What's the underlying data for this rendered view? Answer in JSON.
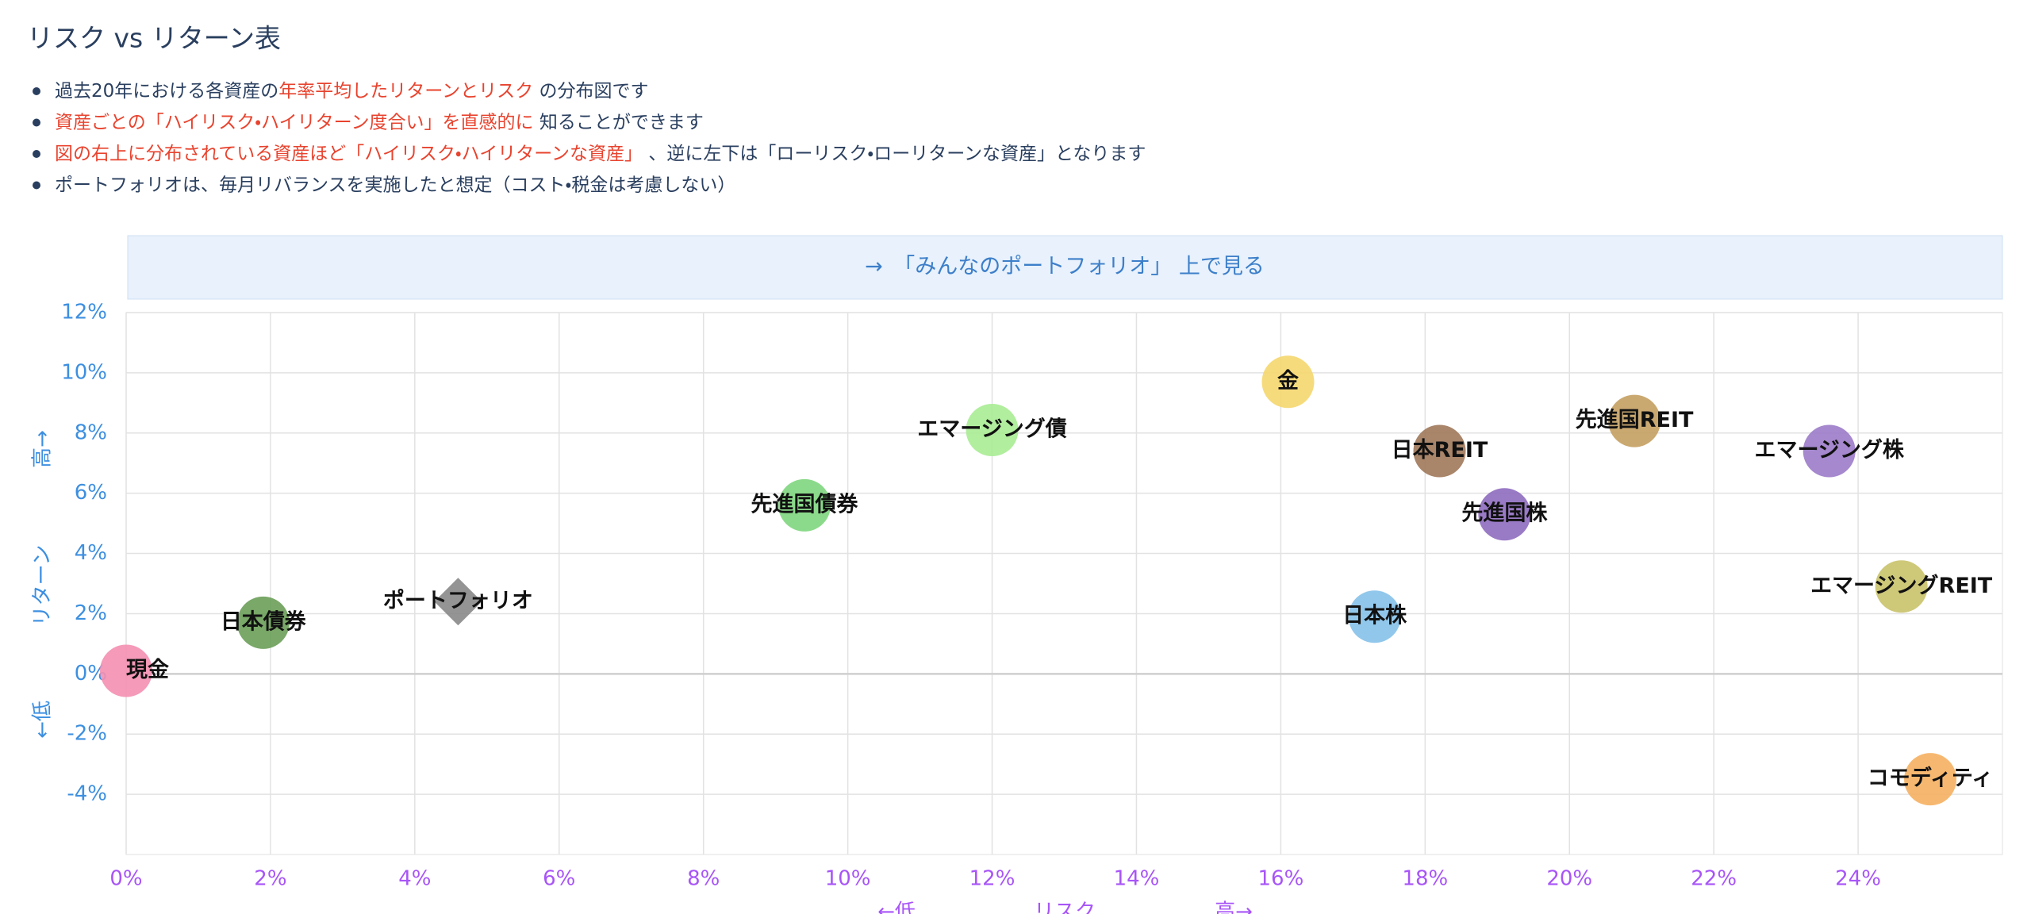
{
  "header": {
    "title": "リスク vs リターン表"
  },
  "bullets": [
    [
      "過去20年における各資産の",
      {
        "text": "年率平均したリターンとリスク",
        "color": "#e8432e"
      },
      " の分布図です"
    ],
    [
      {
        "text": "資産ごとの「ハイリスク・ハイリターン度合い」を直感的に",
        "color": "#e8432e"
      },
      " 知ることができます"
    ],
    [
      {
        "text": "図の右上に分布されている資産ほど「ハイリスク・ハイリターンな資産」",
        "color": "#e8432e"
      },
      " 、逆に左下は「ローリスク・ローリターンな資産」となります"
    ],
    [
      "ポートフォリオは、毎月リバランスを実施したと想定（コスト・税金は考慮しない）"
    ]
  ],
  "link": {
    "text": "→　「みんなのポートフォリオ」 上で見る"
  },
  "chart_data": {
    "type": "scatter",
    "x_label": [
      "←低",
      "リスク",
      "高→"
    ],
    "y_label": [
      "高→",
      "リターン",
      "←低"
    ],
    "xlim": [
      0,
      26
    ],
    "ylim": [
      -6,
      12
    ],
    "xticks": [
      {
        "value": 0,
        "label": "0%"
      },
      {
        "value": 2,
        "label": "2%"
      },
      {
        "value": 4,
        "label": "4%"
      },
      {
        "value": 6,
        "label": "6%"
      },
      {
        "value": 8,
        "label": "8%"
      },
      {
        "value": 10,
        "label": "10%"
      },
      {
        "value": 12,
        "label": "12%"
      },
      {
        "value": 14,
        "label": "14%"
      },
      {
        "value": 16,
        "label": "16%"
      },
      {
        "value": 18,
        "label": "18%"
      },
      {
        "value": 20,
        "label": "20%"
      },
      {
        "value": 22,
        "label": "22%"
      },
      {
        "value": 24,
        "label": "24%"
      }
    ],
    "yticks": [
      {
        "value": -4,
        "label": "-4%"
      },
      {
        "value": -2,
        "label": "-2%"
      },
      {
        "value": 0,
        "label": "0%"
      },
      {
        "value": 2,
        "label": "2%"
      },
      {
        "value": 4,
        "label": "4%"
      },
      {
        "value": 6,
        "label": "6%"
      },
      {
        "value": 8,
        "label": "8%"
      },
      {
        "value": 10,
        "label": "10%"
      },
      {
        "value": 12,
        "label": "12%"
      }
    ],
    "grid": true,
    "series": [
      {
        "name": "現金",
        "color": "#f48fb1",
        "x": [
          0
        ],
        "values": [
          0.1
        ]
      },
      {
        "name": "日本債券",
        "color": "#6a9f58",
        "x": [
          1.9
        ],
        "values": [
          1.7
        ]
      },
      {
        "name": "ポートフォリオ",
        "color": "#888888",
        "marker": "diamond",
        "x": [
          4.6
        ],
        "values": [
          2.4
        ]
      },
      {
        "name": "先進国債券",
        "color": "#7ed67e",
        "x": [
          9.4
        ],
        "values": [
          5.6
        ]
      },
      {
        "name": "エマージング債",
        "color": "#a8ec94",
        "x": [
          12.0
        ],
        "values": [
          8.1
        ]
      },
      {
        "name": "金",
        "color": "#f5d76e",
        "x": [
          16.1
        ],
        "values": [
          9.7
        ]
      },
      {
        "name": "日本REIT",
        "color": "#a0785a",
        "x": [
          18.2
        ],
        "values": [
          7.4
        ]
      },
      {
        "name": "日本株",
        "color": "#85c1e9",
        "x": [
          17.3
        ],
        "values": [
          1.9
        ]
      },
      {
        "name": "先進国株",
        "color": "#8e6bbf",
        "x": [
          19.1
        ],
        "values": [
          5.3
        ]
      },
      {
        "name": "先進国REIT",
        "color": "#c4a062",
        "x": [
          20.9
        ],
        "values": [
          8.4
        ]
      },
      {
        "name": "エマージング株",
        "color": "#9b7bc8",
        "x": [
          23.6
        ],
        "values": [
          7.4
        ]
      },
      {
        "name": "エマージングREIT",
        "color": "#c9c26a",
        "x": [
          24.6
        ],
        "values": [
          2.9
        ]
      },
      {
        "name": "コモディティ",
        "color": "#f5b060",
        "x": [
          25.0
        ],
        "values": [
          -3.5
        ]
      }
    ]
  }
}
